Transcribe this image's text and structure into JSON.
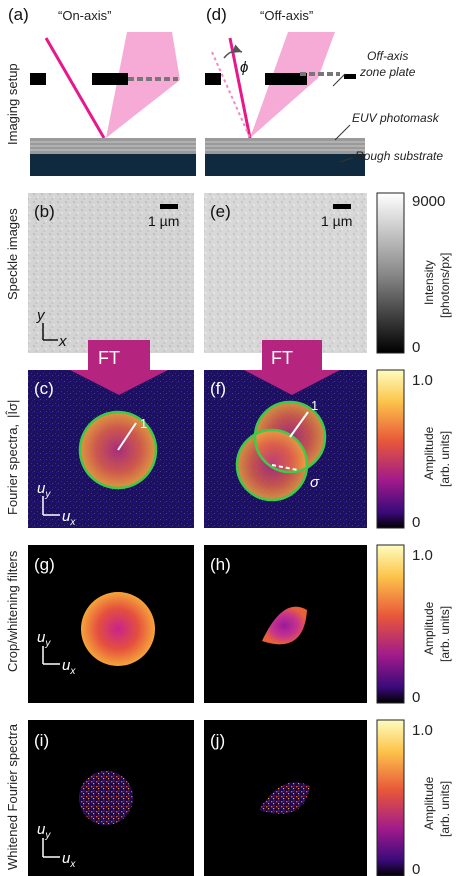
{
  "figure": {
    "titles": {
      "on_axis": "“On-axis”",
      "off_axis": "“Off-axis”"
    },
    "panel_labels": {
      "a": "(a)",
      "b": "(b)",
      "c": "(c)",
      "d": "(d)",
      "e": "(e)",
      "f": "(f)",
      "g": "(g)",
      "h": "(h)",
      "i": "(i)",
      "j": "(j)"
    },
    "row_labels": {
      "setup": "Imaging setup",
      "speckle": "Speckle images",
      "fourier": "Fourier spectra,",
      "fourier_symbol": "|Îσ|",
      "crop": "Crop/whitening filters",
      "whitened": "Whitened Fourier spectra"
    },
    "annotations": {
      "zone_plate": "Off-axis zone plate",
      "zone_plate_line1": "Off-axis",
      "zone_plate_line2": "zone plate",
      "photomask": "EUV photomask",
      "substrate": "Rough substrate",
      "phi": "ϕ",
      "scalebar": "1 µm",
      "ft": "FT",
      "radius": "1",
      "sigma": "σ",
      "axis_x": "x",
      "axis_y": "y",
      "axis_ux": "u",
      "axis_uy": "u",
      "sub_x": "x",
      "sub_y": "y"
    },
    "colorbars": [
      {
        "id": "intensity",
        "max": "9000",
        "min": "0",
        "label_line1": "Intensity",
        "label_line2": "[photons/px]",
        "colormap": "gray"
      },
      {
        "id": "amp1",
        "max": "1.0",
        "min": "0",
        "label_line1": "Amplitude",
        "label_line2": "[arb. units]",
        "colormap": "plasma-like"
      },
      {
        "id": "amp2",
        "max": "1.0",
        "min": "0",
        "label_line1": "Amplitude",
        "label_line2": "[arb. units]",
        "colormap": "plasma-like"
      },
      {
        "id": "amp3",
        "max": "1.0",
        "min": "0",
        "label_line1": "Amplitude",
        "label_line2": "[arb. units]",
        "colormap": "plasma-like"
      }
    ],
    "colors": {
      "beam": "#e8178a",
      "beam_cone": "#f59ccf",
      "ft_arrow": "#b5247f",
      "circle": "#3ecb4a",
      "spectrum_bg": "#1a1060",
      "substrate": "#0f2a3f"
    }
  }
}
